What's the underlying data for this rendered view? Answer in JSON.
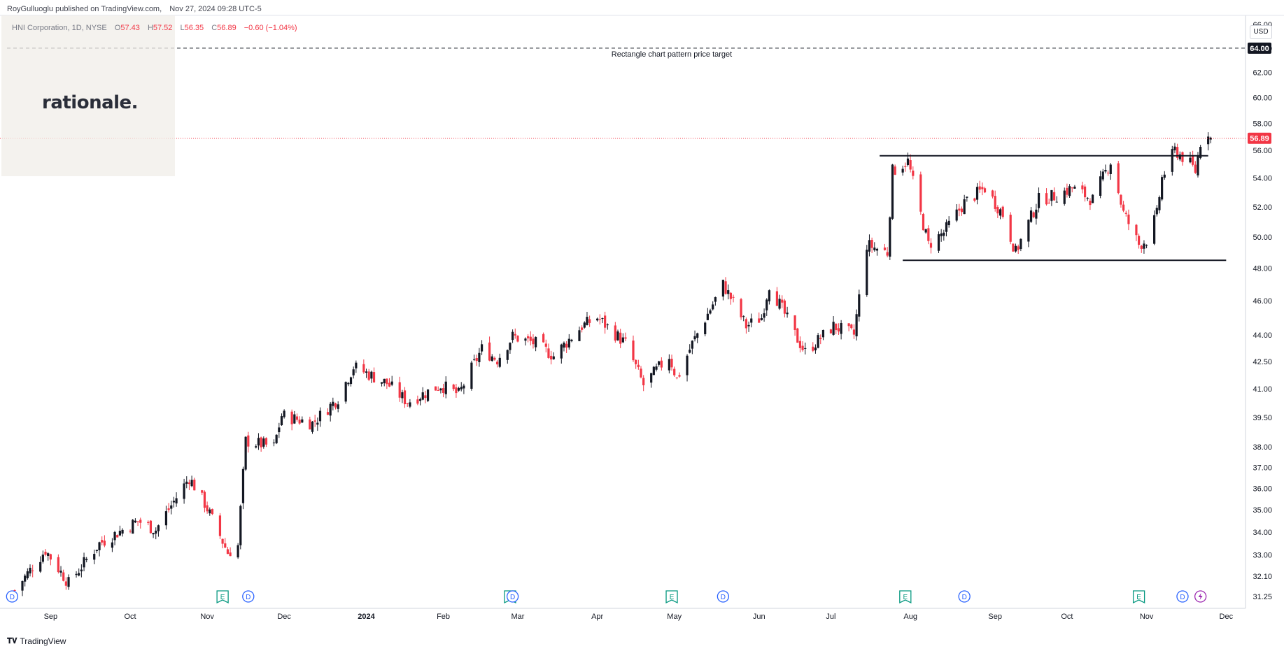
{
  "header": {
    "published_by": "RoyGulluoglu published on TradingView.com,",
    "date": "Nov 27, 2024 09:28 UTC-5"
  },
  "symbol": {
    "name": "HNI Corporation, 1D, NYSE",
    "open_label": "O",
    "open": "57.43",
    "high_label": "H",
    "high": "57.52",
    "low_label": "L",
    "low": "56.35",
    "close_label": "C",
    "close": "56.89",
    "change": "−0.60 (−1.04%)"
  },
  "logo": {
    "text": "rationale."
  },
  "currency": "USD",
  "footer": {
    "brand": "TradingView"
  },
  "colors": {
    "up": "#131722",
    "down": "#f23645",
    "event_d": "#2962ff",
    "event_e": "#089981",
    "event_flash": "#9c27b0",
    "last_price": "#f23645"
  },
  "chart_data": {
    "type": "candlestick",
    "title": "HNI Corporation, 1D, NYSE",
    "y_scale": "log",
    "ylim": [
      31.0,
      66.8
    ],
    "y_ticks": [
      "66.00",
      "64.00",
      "62.00",
      "60.00",
      "58.00",
      "56.00",
      "54.00",
      "52.00",
      "50.00",
      "48.00",
      "46.00",
      "44.00",
      "42.50",
      "41.00",
      "39.50",
      "38.00",
      "37.00",
      "36.00",
      "35.00",
      "34.00",
      "33.00",
      "32.10",
      "31.25"
    ],
    "x_labels": [
      "Sep",
      "Oct",
      "Nov",
      "Dec",
      "2024",
      "Feb",
      "Mar",
      "Apr",
      "May",
      "Jun",
      "Jul",
      "Aug",
      "Sep",
      "Oct",
      "Nov",
      "Dec"
    ],
    "x_label_dates": [
      "2023-09-01",
      "2023-10-02",
      "2023-11-01",
      "2023-12-01",
      "2024-01-02",
      "2024-02-01",
      "2024-03-01",
      "2024-04-01",
      "2024-05-01",
      "2024-06-03",
      "2024-07-01",
      "2024-08-01",
      "2024-09-03",
      "2024-10-01",
      "2024-11-01",
      "2024-12-02"
    ],
    "x_start": "2023-08-15",
    "x_end": "2024-12-09",
    "anchors": [
      [
        "2023-08-18",
        31.5
      ],
      [
        "2023-08-30",
        33.2
      ],
      [
        "2023-09-08",
        31.8
      ],
      [
        "2023-09-20",
        33.5
      ],
      [
        "2023-10-05",
        34.5
      ],
      [
        "2023-10-12",
        34.1
      ],
      [
        "2023-10-25",
        36.5
      ],
      [
        "2023-10-31",
        35.3
      ],
      [
        "2023-11-09",
        33.1
      ],
      [
        "2023-11-13",
        33.4
      ],
      [
        "2023-11-16",
        38.3
      ],
      [
        "2023-11-27",
        38.0
      ],
      [
        "2023-11-30",
        39.6
      ],
      [
        "2023-12-12",
        39.2
      ],
      [
        "2023-12-22",
        40.5
      ],
      [
        "2023-12-28",
        42.2
      ],
      [
        "2024-01-10",
        41.3
      ],
      [
        "2024-01-18",
        40.3
      ],
      [
        "2024-01-31",
        41.2
      ],
      [
        "2024-02-07",
        40.7
      ],
      [
        "2024-02-16",
        43.2
      ],
      [
        "2024-02-22",
        42.6
      ],
      [
        "2024-02-28",
        43.9
      ],
      [
        "2024-03-08",
        43.5
      ],
      [
        "2024-03-15",
        42.8
      ],
      [
        "2024-03-26",
        44.5
      ],
      [
        "2024-04-01",
        45.0
      ],
      [
        "2024-04-12",
        43.5
      ],
      [
        "2024-04-19",
        41.2
      ],
      [
        "2024-04-29",
        42.8
      ],
      [
        "2024-05-02",
        41.5
      ],
      [
        "2024-05-08",
        43.5
      ],
      [
        "2024-05-15",
        45.5
      ],
      [
        "2024-05-20",
        47.0
      ],
      [
        "2024-05-29",
        44.5
      ],
      [
        "2024-06-04",
        45.0
      ],
      [
        "2024-06-07",
        47.0
      ],
      [
        "2024-06-17",
        44.0
      ],
      [
        "2024-06-21",
        43.0
      ],
      [
        "2024-07-02",
        44.5
      ],
      [
        "2024-07-10",
        44.0
      ],
      [
        "2024-07-15",
        49.5
      ],
      [
        "2024-07-23",
        49.0
      ],
      [
        "2024-07-25",
        54.5
      ],
      [
        "2024-07-31",
        55.2
      ],
      [
        "2024-08-05",
        51.5
      ],
      [
        "2024-08-08",
        49.5
      ],
      [
        "2024-08-14",
        50.3
      ],
      [
        "2024-08-22",
        52.3
      ],
      [
        "2024-08-30",
        53.3
      ],
      [
        "2024-09-06",
        51.5
      ],
      [
        "2024-09-11",
        49.0
      ],
      [
        "2024-09-20",
        52.5
      ],
      [
        "2024-09-27",
        52.8
      ],
      [
        "2024-10-03",
        53.3
      ],
      [
        "2024-10-11",
        52.5
      ],
      [
        "2024-10-18",
        55.2
      ],
      [
        "2024-10-23",
        51.6
      ],
      [
        "2024-10-29",
        49.5
      ],
      [
        "2024-11-01",
        49.8
      ],
      [
        "2024-11-05",
        51.5
      ],
      [
        "2024-11-07",
        54.0
      ],
      [
        "2024-11-12",
        56.0
      ],
      [
        "2024-11-18",
        55.0
      ],
      [
        "2024-11-20",
        54.5
      ],
      [
        "2024-11-22",
        56.6
      ],
      [
        "2024-11-25",
        57.4
      ],
      [
        "2024-11-26",
        56.89
      ]
    ],
    "last_price": "56.89",
    "rectangle_top": 55.6,
    "rectangle_bottom": 48.5,
    "rectangle_top_range": [
      "2024-07-20",
      "2024-11-25"
    ],
    "rectangle_bottom_range": [
      "2024-07-29",
      "2024-12-02"
    ],
    "price_target": 64.0,
    "price_target_label": "64.00",
    "annotation": "Rectangle chart pattern price target",
    "events": [
      {
        "date": "2023-08-17",
        "type": "D"
      },
      {
        "date": "2023-11-07",
        "type": "E"
      },
      {
        "date": "2023-11-17",
        "type": "D"
      },
      {
        "date": "2024-02-27",
        "type": "E"
      },
      {
        "date": "2024-02-28",
        "type": "D"
      },
      {
        "date": "2024-04-30",
        "type": "E"
      },
      {
        "date": "2024-05-20",
        "type": "D"
      },
      {
        "date": "2024-07-30",
        "type": "E"
      },
      {
        "date": "2024-08-22",
        "type": "D"
      },
      {
        "date": "2024-10-29",
        "type": "E"
      },
      {
        "date": "2024-11-15",
        "type": "D"
      },
      {
        "date": "2024-11-22",
        "type": "flash"
      }
    ],
    "grid": false,
    "legend": "top-left"
  }
}
